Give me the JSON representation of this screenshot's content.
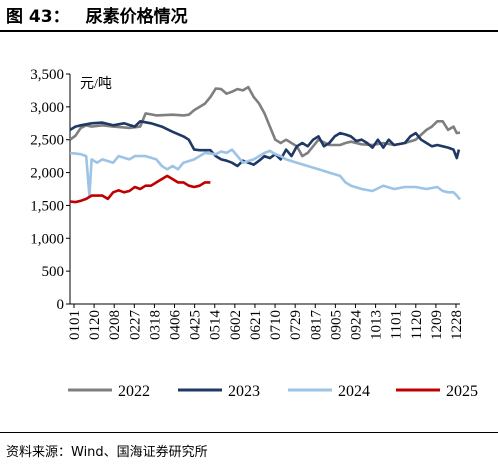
{
  "figure": {
    "label": "图 43：",
    "title": "尿素价格情况",
    "source": "资料来源：Wind、国海证券研究所"
  },
  "chart_data": {
    "type": "line",
    "unit_label": "元/吨",
    "ylim": [
      0,
      3500
    ],
    "yticks": [
      "0",
      "500",
      "1,000",
      "1,500",
      "2,000",
      "2,500",
      "3,000",
      "3,500"
    ],
    "xticks": [
      "0101",
      "0120",
      "0208",
      "0227",
      "0318",
      "0406",
      "0425",
      "0514",
      "0602",
      "0621",
      "0710",
      "0729",
      "0817",
      "0905",
      "0924",
      "1013",
      "1101",
      "1120",
      "1209",
      "1228"
    ],
    "x_range_days": [
      0,
      361
    ],
    "legend_position": "bottom",
    "series": [
      {
        "name": "2022",
        "color": "#7f7f7f",
        "points": [
          [
            0,
            2500
          ],
          [
            5,
            2560
          ],
          [
            10,
            2680
          ],
          [
            15,
            2720
          ],
          [
            20,
            2700
          ],
          [
            30,
            2720
          ],
          [
            40,
            2700
          ],
          [
            55,
            2680
          ],
          [
            65,
            2700
          ],
          [
            70,
            2900
          ],
          [
            80,
            2870
          ],
          [
            95,
            2880
          ],
          [
            105,
            2870
          ],
          [
            110,
            2880
          ],
          [
            115,
            2950
          ],
          [
            120,
            3000
          ],
          [
            125,
            3050
          ],
          [
            130,
            3150
          ],
          [
            135,
            3280
          ],
          [
            140,
            3270
          ],
          [
            145,
            3200
          ],
          [
            150,
            3230
          ],
          [
            155,
            3270
          ],
          [
            160,
            3250
          ],
          [
            165,
            3300
          ],
          [
            170,
            3150
          ],
          [
            175,
            3050
          ],
          [
            180,
            2900
          ],
          [
            185,
            2700
          ],
          [
            190,
            2500
          ],
          [
            195,
            2450
          ],
          [
            200,
            2500
          ],
          [
            205,
            2450
          ],
          [
            210,
            2400
          ],
          [
            215,
            2250
          ],
          [
            220,
            2300
          ],
          [
            225,
            2400
          ],
          [
            230,
            2500
          ],
          [
            240,
            2420
          ],
          [
            250,
            2420
          ],
          [
            255,
            2450
          ],
          [
            260,
            2470
          ],
          [
            270,
            2430
          ],
          [
            280,
            2420
          ],
          [
            290,
            2450
          ],
          [
            300,
            2420
          ],
          [
            310,
            2450
          ],
          [
            320,
            2500
          ],
          [
            330,
            2650
          ],
          [
            335,
            2700
          ],
          [
            340,
            2780
          ],
          [
            345,
            2780
          ],
          [
            350,
            2650
          ],
          [
            355,
            2700
          ],
          [
            358,
            2600
          ],
          [
            361,
            2610
          ]
        ]
      },
      {
        "name": "2023",
        "color": "#1f3864",
        "points": [
          [
            0,
            2650
          ],
          [
            5,
            2700
          ],
          [
            10,
            2720
          ],
          [
            20,
            2750
          ],
          [
            30,
            2760
          ],
          [
            40,
            2720
          ],
          [
            50,
            2750
          ],
          [
            60,
            2700
          ],
          [
            65,
            2780
          ],
          [
            75,
            2750
          ],
          [
            85,
            2700
          ],
          [
            95,
            2620
          ],
          [
            105,
            2550
          ],
          [
            110,
            2500
          ],
          [
            115,
            2350
          ],
          [
            120,
            2340
          ],
          [
            130,
            2340
          ],
          [
            135,
            2250
          ],
          [
            140,
            2200
          ],
          [
            145,
            2180
          ],
          [
            150,
            2150
          ],
          [
            155,
            2100
          ],
          [
            160,
            2180
          ],
          [
            165,
            2150
          ],
          [
            170,
            2120
          ],
          [
            175,
            2180
          ],
          [
            180,
            2250
          ],
          [
            185,
            2220
          ],
          [
            190,
            2280
          ],
          [
            195,
            2200
          ],
          [
            200,
            2350
          ],
          [
            205,
            2250
          ],
          [
            210,
            2400
          ],
          [
            215,
            2450
          ],
          [
            220,
            2400
          ],
          [
            225,
            2500
          ],
          [
            230,
            2550
          ],
          [
            235,
            2400
          ],
          [
            240,
            2450
          ],
          [
            245,
            2550
          ],
          [
            250,
            2600
          ],
          [
            255,
            2580
          ],
          [
            260,
            2550
          ],
          [
            265,
            2480
          ],
          [
            270,
            2500
          ],
          [
            275,
            2450
          ],
          [
            280,
            2380
          ],
          [
            285,
            2500
          ],
          [
            290,
            2380
          ],
          [
            295,
            2500
          ],
          [
            300,
            2420
          ],
          [
            310,
            2450
          ],
          [
            315,
            2550
          ],
          [
            320,
            2600
          ],
          [
            325,
            2500
          ],
          [
            330,
            2450
          ],
          [
            335,
            2400
          ],
          [
            340,
            2420
          ],
          [
            345,
            2400
          ],
          [
            350,
            2380
          ],
          [
            355,
            2350
          ],
          [
            358,
            2220
          ],
          [
            360,
            2350
          ]
        ]
      },
      {
        "name": "2024",
        "color": "#9dc3e6",
        "points": [
          [
            0,
            2300
          ],
          [
            10,
            2280
          ],
          [
            15,
            2250
          ],
          [
            18,
            1650
          ],
          [
            20,
            2200
          ],
          [
            25,
            2150
          ],
          [
            30,
            2200
          ],
          [
            40,
            2150
          ],
          [
            45,
            2250
          ],
          [
            55,
            2200
          ],
          [
            60,
            2250
          ],
          [
            70,
            2250
          ],
          [
            80,
            2200
          ],
          [
            85,
            2100
          ],
          [
            90,
            2050
          ],
          [
            95,
            2100
          ],
          [
            100,
            2050
          ],
          [
            105,
            2150
          ],
          [
            115,
            2200
          ],
          [
            125,
            2300
          ],
          [
            135,
            2280
          ],
          [
            140,
            2320
          ],
          [
            145,
            2300
          ],
          [
            150,
            2350
          ],
          [
            155,
            2250
          ],
          [
            160,
            2150
          ],
          [
            170,
            2200
          ],
          [
            175,
            2250
          ],
          [
            180,
            2300
          ],
          [
            185,
            2330
          ],
          [
            190,
            2280
          ],
          [
            195,
            2250
          ],
          [
            200,
            2200
          ],
          [
            210,
            2150
          ],
          [
            220,
            2100
          ],
          [
            230,
            2050
          ],
          [
            240,
            2000
          ],
          [
            250,
            1950
          ],
          [
            255,
            1850
          ],
          [
            260,
            1800
          ],
          [
            270,
            1750
          ],
          [
            280,
            1720
          ],
          [
            290,
            1800
          ],
          [
            300,
            1750
          ],
          [
            310,
            1780
          ],
          [
            320,
            1780
          ],
          [
            330,
            1750
          ],
          [
            340,
            1780
          ],
          [
            345,
            1720
          ],
          [
            350,
            1700
          ],
          [
            355,
            1700
          ],
          [
            358,
            1650
          ],
          [
            361,
            1590
          ]
        ]
      },
      {
        "name": "2025",
        "color": "#c00000",
        "points": [
          [
            0,
            1560
          ],
          [
            5,
            1550
          ],
          [
            10,
            1570
          ],
          [
            15,
            1600
          ],
          [
            20,
            1650
          ],
          [
            30,
            1650
          ],
          [
            35,
            1600
          ],
          [
            40,
            1700
          ],
          [
            45,
            1730
          ],
          [
            50,
            1700
          ],
          [
            55,
            1720
          ],
          [
            60,
            1780
          ],
          [
            65,
            1750
          ],
          [
            70,
            1800
          ],
          [
            75,
            1800
          ],
          [
            80,
            1850
          ],
          [
            85,
            1900
          ],
          [
            90,
            1950
          ],
          [
            95,
            1900
          ],
          [
            100,
            1850
          ],
          [
            105,
            1850
          ],
          [
            110,
            1800
          ],
          [
            115,
            1780
          ],
          [
            120,
            1800
          ],
          [
            125,
            1850
          ],
          [
            130,
            1850
          ]
        ]
      }
    ]
  }
}
